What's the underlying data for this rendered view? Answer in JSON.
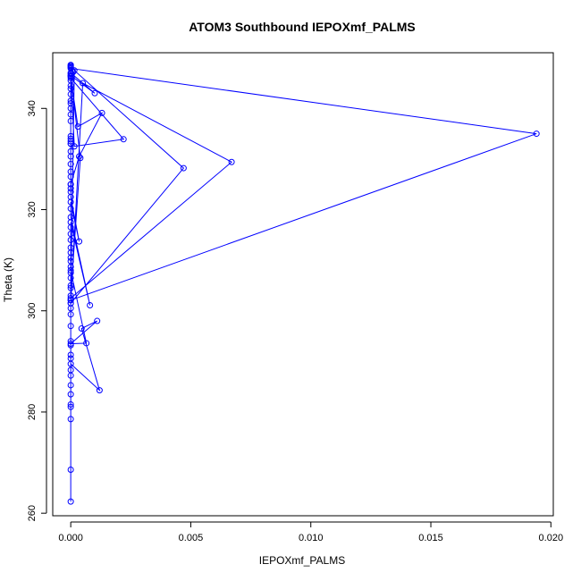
{
  "chart_data": {
    "type": "line",
    "title": "ATOM3 Southbound IEPOXmf_PALMS",
    "xlabel": "IEPOXmf_PALMS",
    "ylabel": "Theta (K)",
    "xlim": [
      -0.00075,
      0.0201
    ],
    "ylim": [
      259.5,
      351
    ],
    "x_ticks": [
      "0.000",
      "0.005",
      "0.010",
      "0.015",
      "0.020"
    ],
    "y_ticks": [
      "260",
      "280",
      "300",
      "320",
      "340"
    ],
    "grid": false,
    "series_color": "#0000ff",
    "marker": "open-circle",
    "x": [
      0,
      0,
      0,
      0,
      0,
      0,
      0,
      0,
      0,
      0,
      0,
      0,
      0,
      0,
      0,
      0,
      0,
      0,
      0,
      0,
      0,
      0,
      0,
      0.0012,
      0.00045,
      0.0011,
      0,
      0.00065,
      0,
      0,
      0,
      0,
      0,
      0,
      0,
      0,
      0,
      0,
      0.0008,
      0,
      0,
      0,
      0.00035,
      0,
      0,
      0,
      0,
      0,
      0,
      0,
      0,
      0,
      0,
      0,
      0,
      0,
      0,
      0,
      0,
      0,
      0,
      0,
      0,
      0,
      0,
      0,
      0.0194,
      0,
      0,
      0.0067,
      0.0005,
      0,
      0.0047,
      0.00015,
      0,
      0.0004,
      0,
      0.00015,
      0.0022,
      0,
      0.0003,
      0.0013,
      0.00035,
      0,
      0,
      0.001,
      0,
      0,
      0,
      0.0001,
      0,
      0,
      0,
      0,
      0
    ],
    "y": [
      262.3,
      268.6,
      278.6,
      281.0,
      281.5,
      283.5,
      285.3,
      287.2,
      288.3,
      290.6,
      291.3,
      293.2,
      294.0,
      297.0,
      299.3,
      300.5,
      301.5,
      302.1,
      304.5,
      305.0,
      306.5,
      307.5,
      289.5,
      284.3,
      296.5,
      298.0,
      293.5,
      293.6,
      308.0,
      308.7,
      309.8,
      310.5,
      311.5,
      312.5,
      314.0,
      315.2,
      316.5,
      317.5,
      301.1,
      318.5,
      320.2,
      321.5,
      313.7,
      322.5,
      323.5,
      324.2,
      325.0,
      326.5,
      327.5,
      329.0,
      330.5,
      331.5,
      334.0,
      333.0,
      333.5,
      334.5,
      337.5,
      338.8,
      340.0,
      341.5,
      342.8,
      343.9,
      345.5,
      346.3,
      346.8,
      347.9,
      335.0,
      302.1,
      302.5,
      329.4,
      345.0,
      301.5,
      328.2,
      347.5,
      303.0,
      330.2,
      346.5,
      332.5,
      333.9,
      346.0,
      336.4,
      339.1,
      330.5,
      325.0,
      346.5,
      343.0,
      347.0,
      348.3,
      344.5,
      347.2,
      348.4,
      348.6,
      341.0,
      333.0,
      348.1
    ]
  }
}
